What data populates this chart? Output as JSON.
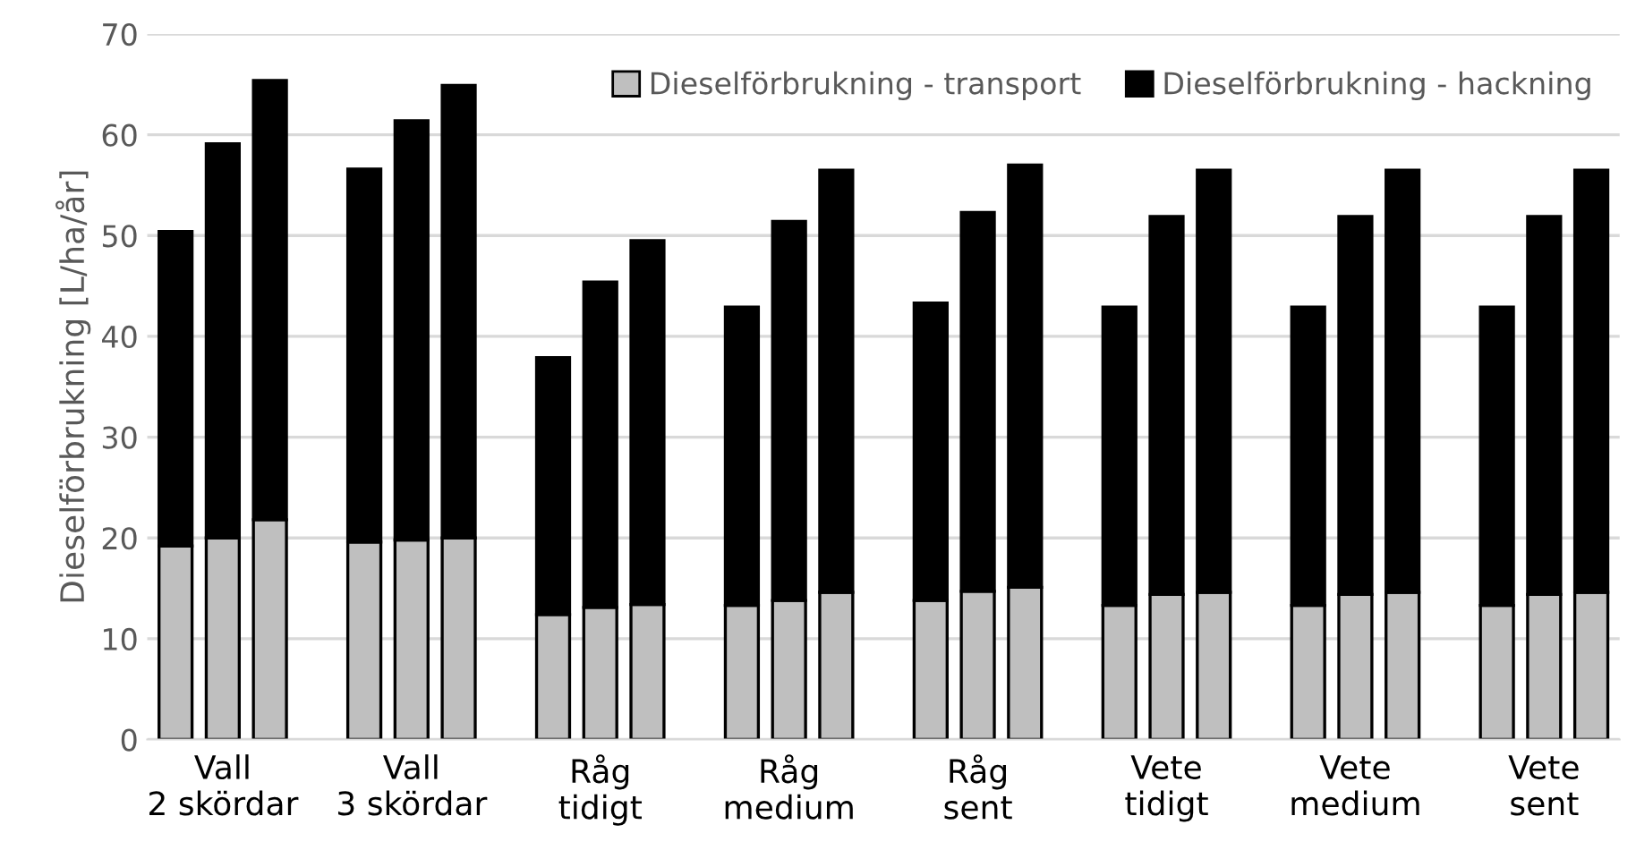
{
  "chart_data": {
    "type": "bar",
    "stacked": true,
    "ylabel": "Dieselförbrukning [L/ha/år]",
    "categories": [
      null,
      "Vall\n2 skördar",
      null,
      null,
      null,
      "Vall\n3 skördar",
      null,
      null,
      null,
      "Råg\ntidigt",
      null,
      null,
      null,
      "Råg\nmedium",
      null,
      null,
      null,
      "Råg\nsent",
      null,
      null,
      null,
      "Vete\ntidigt",
      null,
      null,
      null,
      "Vete\nmedium",
      null,
      null,
      null,
      "Vete\nsent",
      null
    ],
    "series": [
      {
        "name": "Dieselförbrukning - transport",
        "color": "#bfbfbf",
        "values": [
          19.2,
          20.0,
          21.8,
          null,
          19.6,
          19.8,
          20.0,
          null,
          12.4,
          13.1,
          13.4,
          null,
          13.3,
          13.8,
          14.6,
          null,
          13.8,
          14.7,
          15.1,
          null,
          13.3,
          14.4,
          14.6,
          null,
          13.3,
          14.4,
          14.6,
          null,
          13.3,
          14.4,
          14.6
        ]
      },
      {
        "name": "Dieselförbrukning - hackning",
        "color": "#000000",
        "values": [
          31.2,
          39.1,
          43.6,
          null,
          37.0,
          41.6,
          44.9,
          null,
          25.5,
          32.3,
          36.1,
          null,
          29.6,
          37.6,
          41.9,
          null,
          29.5,
          37.6,
          41.9,
          null,
          29.6,
          37.5,
          41.9,
          null,
          29.6,
          37.5,
          41.9,
          null,
          29.6,
          37.5,
          41.9
        ]
      }
    ],
    "ylim": [
      0,
      70
    ],
    "yticks": [
      0,
      10,
      20,
      30,
      40,
      50,
      60,
      70
    ],
    "grid": "y",
    "legend": "top right"
  }
}
